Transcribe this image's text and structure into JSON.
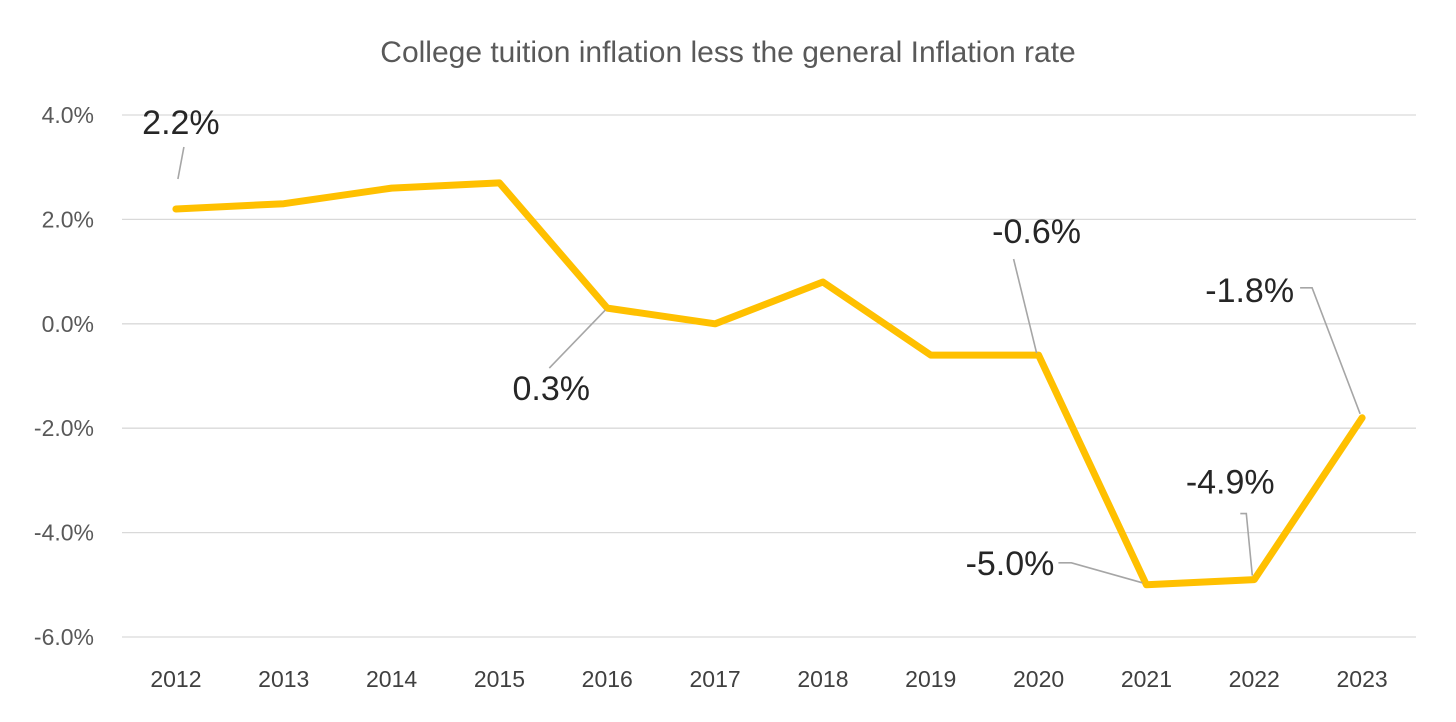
{
  "chart_data": {
    "type": "line",
    "title": "College tuition inflation less the general Inflation rate",
    "categories": [
      "2012",
      "2013",
      "2014",
      "2015",
      "2016",
      "2017",
      "2018",
      "2019",
      "2020",
      "2021",
      "2022",
      "2023"
    ],
    "series": [
      {
        "values": [
          2.2,
          2.3,
          2.6,
          2.7,
          0.3,
          0.0,
          0.8,
          -0.6,
          -0.6,
          -5.0,
          -4.9,
          -1.8
        ],
        "color": "#FFC000"
      }
    ],
    "ylim": [
      -6.0,
      4.0
    ],
    "yticks": [
      4.0,
      2.0,
      0.0,
      -2.0,
      -4.0,
      -6.0
    ],
    "ytick_labels": [
      "4.0%",
      "2.0%",
      "0.0%",
      "-2.0%",
      "-4.0%",
      "-6.0%"
    ],
    "grid": true,
    "legend": "none",
    "data_labels": [
      {
        "index": 0,
        "text": "2.2%"
      },
      {
        "index": 4,
        "text": "0.3%"
      },
      {
        "index": 8,
        "text": "-0.6%"
      },
      {
        "index": 9,
        "text": "-5.0%"
      },
      {
        "index": 10,
        "text": "-4.9%"
      },
      {
        "index": 11,
        "text": "-1.8%"
      }
    ]
  }
}
